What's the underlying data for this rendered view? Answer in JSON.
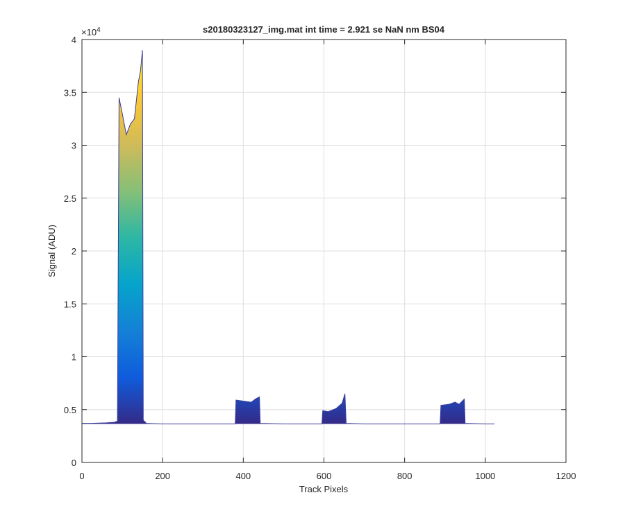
{
  "chart_data": {
    "type": "area",
    "title": "s20180323127_img.mat int time = 2.921 se  NaN nm BS04",
    "xlabel": "Track Pixels",
    "ylabel": "Signal (ADU)",
    "y_exponent": {
      "base": "×10",
      "power": "4"
    },
    "x": [
      0,
      20,
      40,
      60,
      80,
      88,
      92,
      100,
      110,
      120,
      130,
      140,
      145,
      150,
      152,
      160,
      200,
      250,
      300,
      380,
      382,
      400,
      420,
      430,
      440,
      442,
      500,
      595,
      597,
      610,
      630,
      645,
      652,
      655,
      700,
      800,
      888,
      890,
      910,
      925,
      935,
      948,
      950,
      1000,
      1023
    ],
    "values": [
      0.37,
      0.37,
      0.372,
      0.375,
      0.38,
      0.39,
      3.45,
      3.3,
      3.1,
      3.2,
      3.25,
      3.6,
      3.7,
      3.9,
      0.4,
      0.37,
      0.365,
      0.365,
      0.365,
      0.365,
      0.59,
      0.58,
      0.57,
      0.6,
      0.62,
      0.37,
      0.365,
      0.365,
      0.49,
      0.48,
      0.51,
      0.56,
      0.65,
      0.37,
      0.365,
      0.365,
      0.365,
      0.54,
      0.55,
      0.57,
      0.55,
      0.6,
      0.37,
      0.365,
      0.365
    ],
    "colormap": [
      "#352a87",
      "#0f5cdd",
      "#1481d6",
      "#06a4ca",
      "#2eb7a4",
      "#87bf77",
      "#d1bb59",
      "#fec832",
      "#f9fb0e"
    ],
    "line_color": "#3b3d9c",
    "xlim": [
      0,
      1200
    ],
    "xticks": [
      0,
      200,
      400,
      600,
      800,
      1000,
      1200
    ],
    "ylim": [
      0,
      4
    ],
    "yticks": [
      0,
      0.5,
      1,
      1.5,
      2,
      2.5,
      3,
      3.5,
      4
    ],
    "grid": true
  }
}
